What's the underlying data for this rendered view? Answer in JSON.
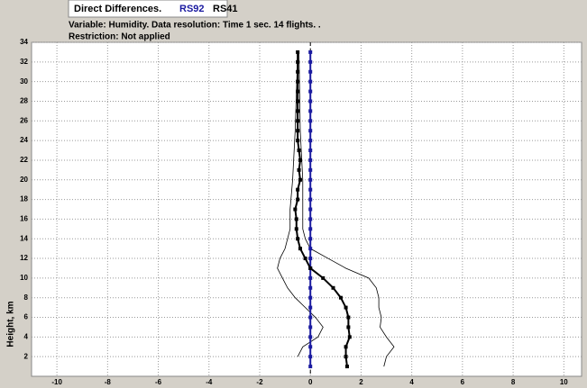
{
  "chart_data": {
    "type": "profile",
    "header": "Direct Differences.",
    "subtitle": "Variable: Humidity. Data resolution: Time 1 sec. 14 flights. .",
    "note": "Restriction: Not applied",
    "ylabel": "Height, km",
    "xlim": [
      -11,
      10.7
    ],
    "ylim": [
      0,
      34
    ],
    "xticks": [
      -10,
      -8,
      -6,
      -4,
      -2,
      0,
      2,
      4,
      6,
      8,
      10
    ],
    "yticks": [
      2,
      4,
      6,
      8,
      10,
      12,
      14,
      16,
      18,
      20,
      22,
      24,
      26,
      28,
      30,
      32,
      34
    ],
    "grid": true,
    "zero_line": true,
    "series": [
      {
        "name": "RS92",
        "color": "#1a1aa0",
        "heights": [
          1,
          2,
          3,
          4,
          5,
          6,
          7,
          8,
          9,
          10,
          11,
          12,
          13,
          14,
          15,
          16,
          17,
          18,
          19,
          20,
          21,
          22,
          23,
          24,
          25,
          26,
          27,
          28,
          29,
          30,
          31,
          32,
          33
        ],
        "values": [
          0,
          0,
          0,
          0,
          0,
          0,
          0,
          0,
          0,
          0,
          0,
          0,
          0,
          0,
          0,
          0,
          0,
          0,
          0,
          0,
          0,
          0,
          0,
          0,
          0,
          0,
          0,
          0,
          0,
          0,
          0,
          0,
          0
        ]
      },
      {
        "name": "RS41",
        "color": "#000000",
        "heights": [
          1,
          2,
          3,
          4,
          5,
          6,
          7,
          8,
          9,
          10,
          11,
          12,
          13,
          14,
          15,
          16,
          17,
          18,
          19,
          20,
          21,
          22,
          23,
          24,
          25,
          26,
          27,
          28,
          29,
          30,
          31,
          32,
          33
        ],
        "values": [
          1.45,
          1.4,
          1.4,
          1.55,
          1.5,
          1.5,
          1.4,
          1.2,
          0.9,
          0.5,
          0,
          -0.2,
          -0.4,
          -0.5,
          -0.55,
          -0.55,
          -0.6,
          -0.5,
          -0.5,
          -0.4,
          -0.45,
          -0.4,
          -0.45,
          -0.5,
          -0.5,
          -0.5,
          -0.5,
          -0.5,
          -0.5,
          -0.5,
          -0.5,
          -0.5,
          -0.5
        ]
      }
    ],
    "bounds": [
      {
        "color": "#000000",
        "heights": [
          2,
          3,
          4,
          5,
          6,
          7,
          8,
          9,
          10,
          11,
          12,
          13,
          15,
          17,
          20,
          25,
          33
        ],
        "values": [
          -0.5,
          -0.3,
          0.3,
          0.5,
          0.2,
          -0.2,
          -0.6,
          -0.9,
          -1.1,
          -1.3,
          -1.2,
          -1.0,
          -0.8,
          -0.8,
          -0.7,
          -0.6,
          -0.5
        ]
      },
      {
        "color": "#000000",
        "heights": [
          1,
          2,
          3,
          4,
          5,
          6,
          7,
          8,
          9,
          10,
          11,
          12,
          13,
          14,
          15,
          17,
          20,
          25,
          33
        ],
        "values": [
          2.9,
          3.0,
          3.3,
          3.0,
          2.75,
          2.8,
          2.7,
          2.7,
          2.6,
          2.3,
          1.4,
          0.7,
          0,
          -0.2,
          -0.3,
          -0.3,
          -0.3,
          -0.4,
          -0.45
        ]
      }
    ]
  }
}
